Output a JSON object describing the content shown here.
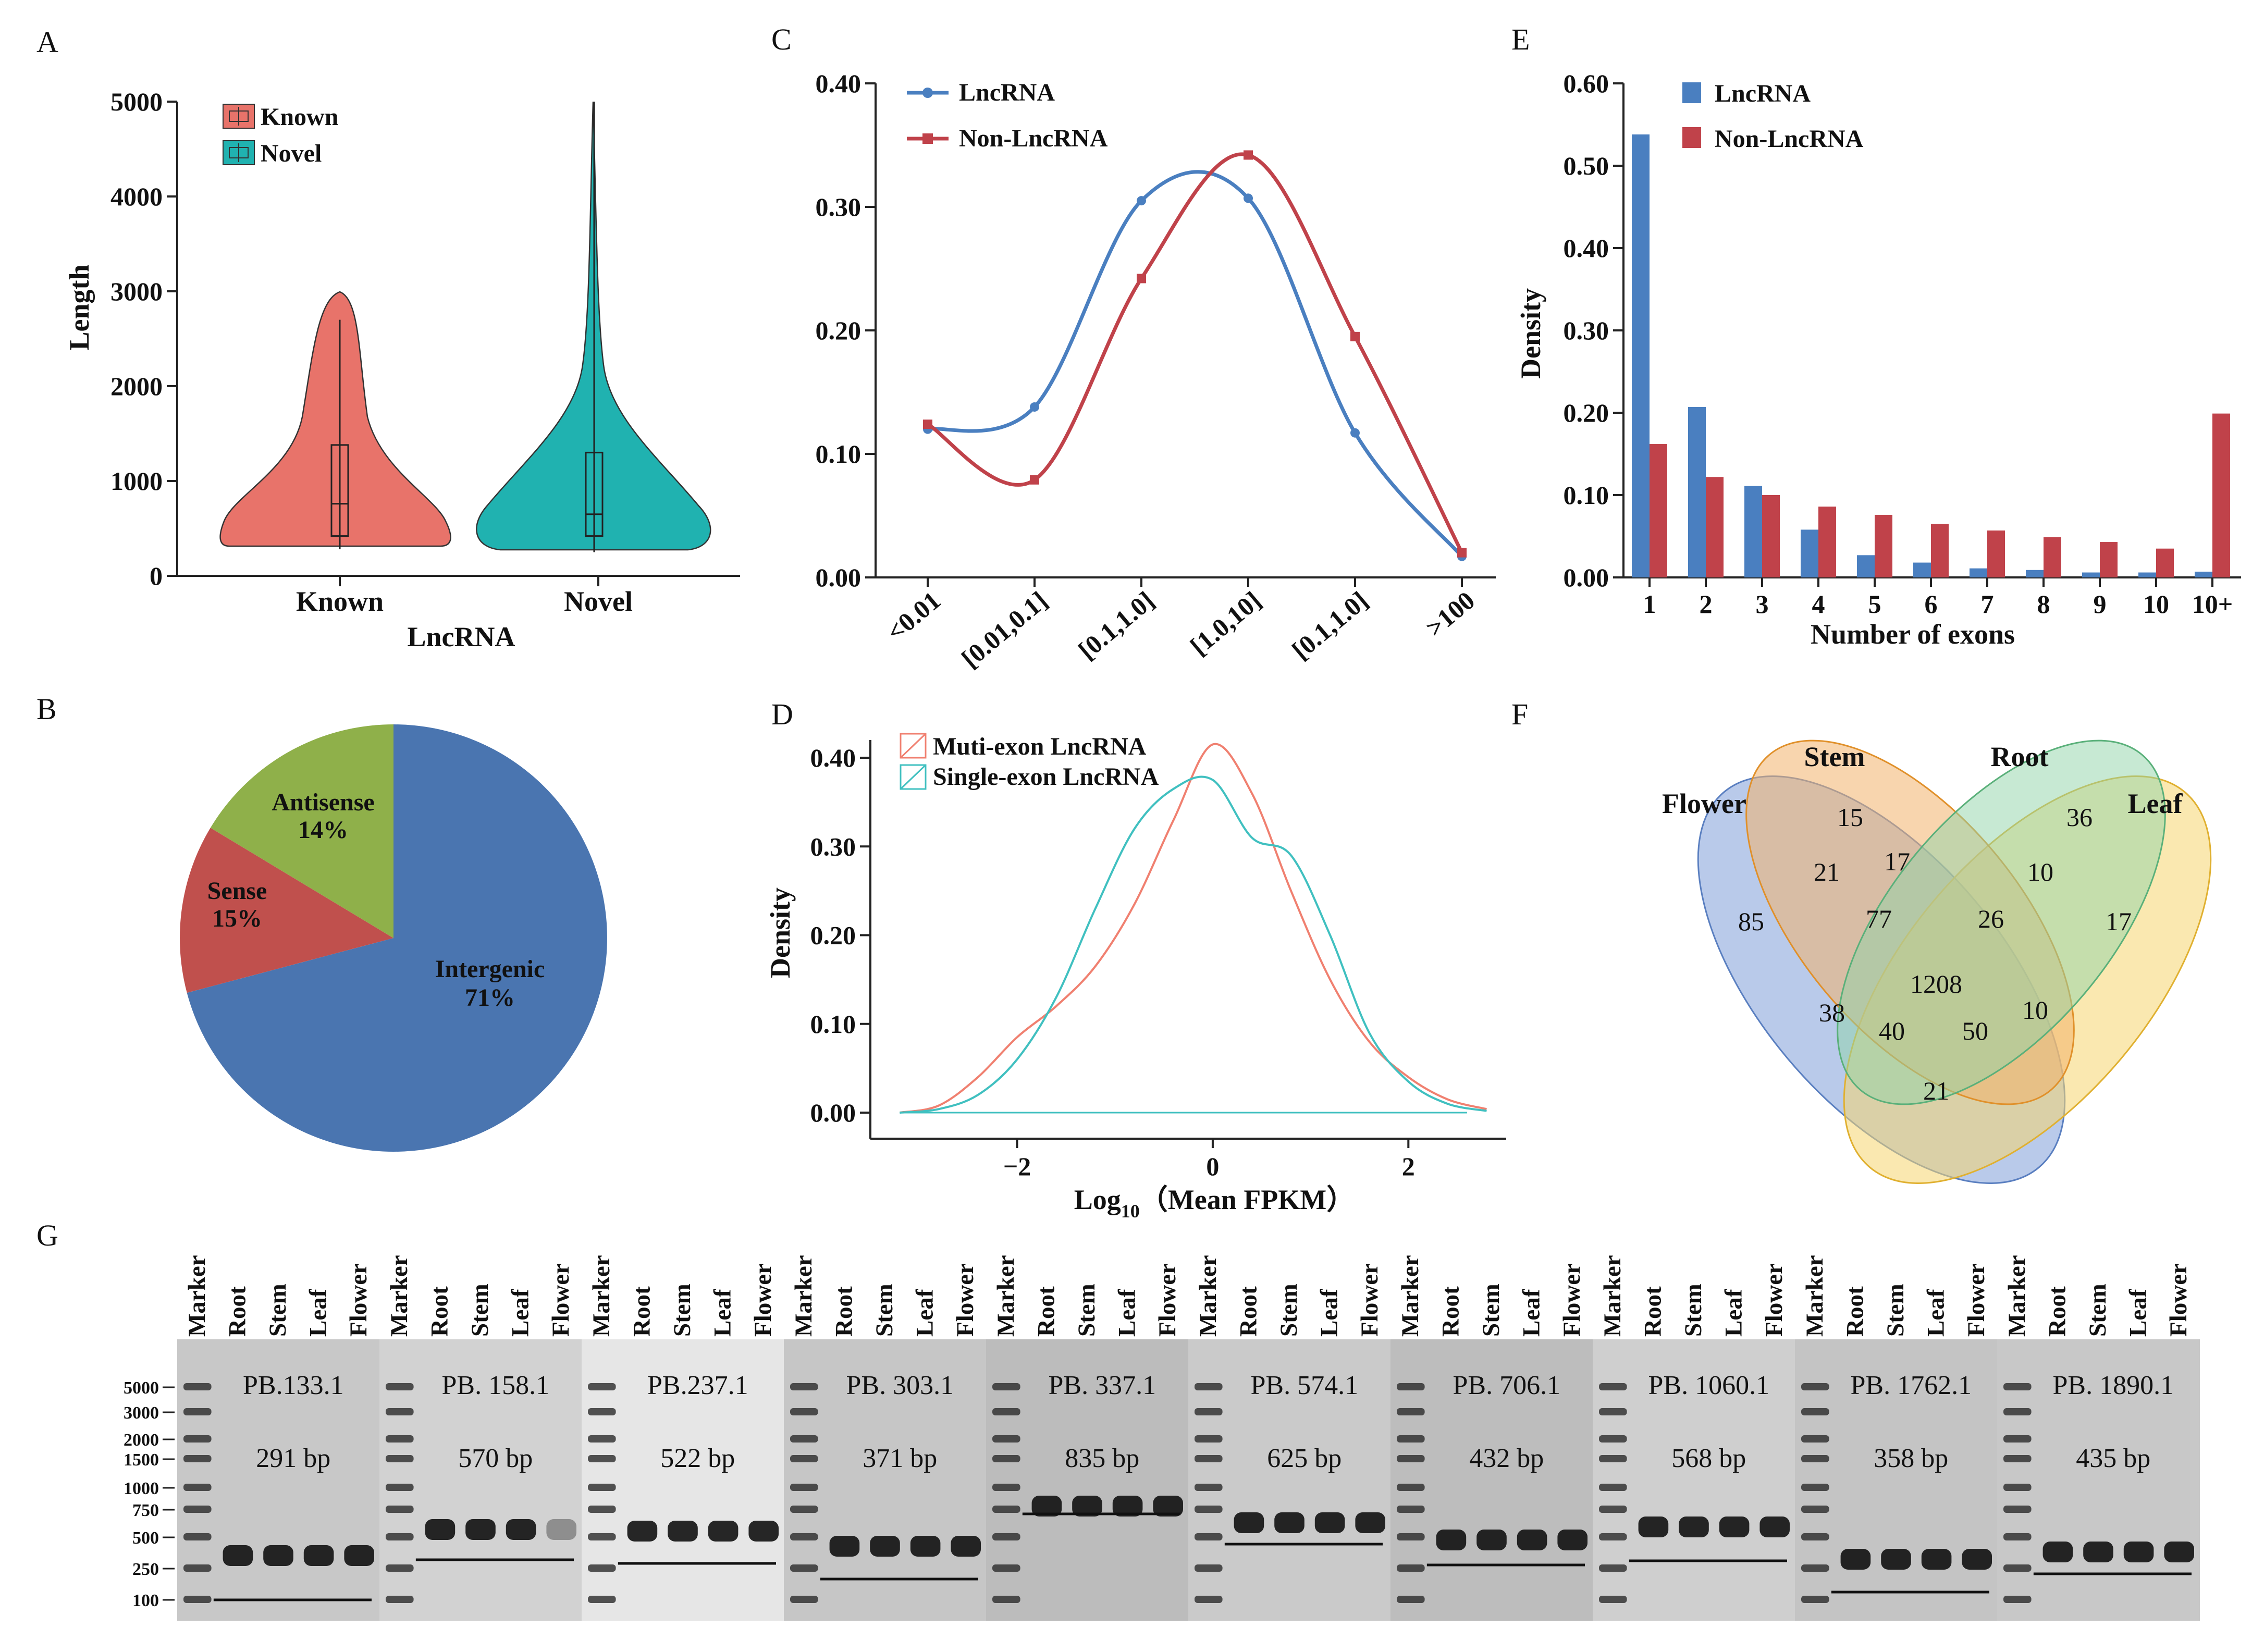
{
  "panel_labels": {
    "a": "A",
    "b": "B",
    "c": "C",
    "d": "D",
    "e": "E",
    "f": "F",
    "g": "G"
  },
  "colors": {
    "known": "#e8736a",
    "novel": "#20b2b0",
    "lnc_blue": "#4a7fc0",
    "non_red": "#c0424a",
    "intergenic": "#4a75b0",
    "sense": "#c0504d",
    "antisense": "#8fb04a",
    "flower": "#7f9fd8",
    "stem": "#f2b26b",
    "root": "#8fd4a8",
    "leaf": "#f6d66f",
    "muti": "#f08070",
    "single": "#40c0c0"
  },
  "chart_data": [
    {
      "id": "A",
      "type": "violin",
      "title": "",
      "xlabel": "LncRNA",
      "ylabel": "Length",
      "ylim": [
        0,
        5000
      ],
      "yticks": [
        0,
        1000,
        2000,
        3000,
        4000,
        5000
      ],
      "categories": [
        "Known",
        "Novel"
      ],
      "legend": [
        "Known",
        "Novel"
      ],
      "legend_position": "top-left",
      "boxes": [
        {
          "name": "Known",
          "min": 280,
          "q1": 420,
          "median": 760,
          "q3": 1380,
          "max": 2700
        },
        {
          "name": "Novel",
          "min": 250,
          "q1": 420,
          "median": 650,
          "q3": 1300,
          "max": 5000
        }
      ]
    },
    {
      "id": "B",
      "type": "pie",
      "slices": [
        {
          "label": "Intergenic",
          "pct_label": "71%",
          "value": 71
        },
        {
          "label": "Sense",
          "pct_label": "15%",
          "value": 15
        },
        {
          "label": "Antisense",
          "pct_label": "14%",
          "value": 14
        }
      ]
    },
    {
      "id": "C",
      "type": "line",
      "xlabel": "",
      "ylabel": "",
      "categories": [
        "<0.01",
        "[0.01,0.1]",
        "[0.1,1.0]",
        "[1.0,10]",
        "[0.1,1.0]",
        ">100"
      ],
      "ylim": [
        0,
        0.4
      ],
      "yticks": [
        "0.00",
        "0.10",
        "0.20",
        "0.30",
        "0.40"
      ],
      "series": [
        {
          "name": "LncRNA",
          "values": [
            0.12,
            0.138,
            0.305,
            0.307,
            0.117,
            0.017
          ]
        },
        {
          "name": "Non-LncRNA",
          "values": [
            0.124,
            0.079,
            0.242,
            0.342,
            0.195,
            0.02
          ]
        }
      ],
      "legend_position": "top-left"
    },
    {
      "id": "D",
      "type": "line",
      "xlabel": "Log",
      "xlabel_sub": "10",
      "xlabel_rest": "（Mean FPKM）",
      "ylabel": "Density",
      "xlim": [
        -3.5,
        3.0
      ],
      "ylim": [
        0,
        0.42
      ],
      "xticks": [
        "−2",
        "0",
        "2"
      ],
      "yticks": [
        "0.00",
        "0.10",
        "0.20",
        "0.30",
        "0.40"
      ],
      "series": [
        {
          "name": "Muti-exon LncRNA",
          "x": [
            -3.2,
            -2.8,
            -2.4,
            -2.0,
            -1.6,
            -1.2,
            -0.8,
            -0.4,
            0.0,
            0.4,
            0.8,
            1.2,
            1.6,
            2.0,
            2.4,
            2.8
          ],
          "y": [
            0.0,
            0.008,
            0.04,
            0.085,
            0.12,
            0.165,
            0.235,
            0.33,
            0.415,
            0.36,
            0.25,
            0.15,
            0.08,
            0.04,
            0.015,
            0.004
          ]
        },
        {
          "name": "Single-exon LncRNA",
          "x": [
            -3.2,
            -2.8,
            -2.4,
            -2.0,
            -1.6,
            -1.2,
            -0.8,
            -0.4,
            0.0,
            0.4,
            0.8,
            1.2,
            1.6,
            2.0,
            2.4,
            2.8
          ],
          "y": [
            0.0,
            0.004,
            0.02,
            0.06,
            0.13,
            0.23,
            0.32,
            0.365,
            0.375,
            0.31,
            0.29,
            0.2,
            0.09,
            0.035,
            0.01,
            0.002
          ]
        }
      ],
      "legend_position": "top-left"
    },
    {
      "id": "E",
      "type": "bar",
      "xlabel": "Number of exons",
      "ylabel": "Density",
      "categories": [
        "1",
        "2",
        "3",
        "4",
        "5",
        "6",
        "7",
        "8",
        "9",
        "10",
        "10+"
      ],
      "ylim": [
        0,
        0.6
      ],
      "yticks": [
        "0.00",
        "0.10",
        "0.20",
        "0.30",
        "0.40",
        "0.50",
        "0.60"
      ],
      "series": [
        {
          "name": "LncRNA",
          "values": [
            0.538,
            0.207,
            0.111,
            0.058,
            0.027,
            0.018,
            0.011,
            0.009,
            0.006,
            0.006,
            0.007
          ]
        },
        {
          "name": "Non-LncRNA",
          "values": [
            0.162,
            0.122,
            0.1,
            0.086,
            0.076,
            0.065,
            0.057,
            0.049,
            0.043,
            0.035,
            0.199
          ]
        }
      ],
      "legend_position": "top-left"
    },
    {
      "id": "F",
      "type": "venn",
      "sets": [
        "Flower",
        "Stem",
        "Root",
        "Leaf"
      ],
      "regions": [
        {
          "sets": "Stem",
          "value": "15"
        },
        {
          "sets": "Root",
          "value": "36"
        },
        {
          "sets": "Flower",
          "value": "85"
        },
        {
          "sets": "Leaf",
          "value": "17"
        },
        {
          "sets": "Flower+Stem",
          "value": "21"
        },
        {
          "sets": "Stem+Root",
          "value": "17"
        },
        {
          "sets": "Root+Leaf",
          "value": "10"
        },
        {
          "sets": "Flower+Stem+Root",
          "value": "77"
        },
        {
          "sets": "Stem+Root+Leaf",
          "value": "26"
        },
        {
          "sets": "All",
          "value": "1208"
        },
        {
          "sets": "Flower+Root",
          "value": "38"
        },
        {
          "sets": "Flower+Root+Leaf",
          "value": "40"
        },
        {
          "sets": "Flower+Stem+Leaf",
          "value": "50"
        },
        {
          "sets": "Stem+Leaf",
          "value": "10"
        },
        {
          "sets": "Flower+Leaf",
          "value": "21"
        }
      ]
    }
  ],
  "gel": {
    "lane_labels": [
      "Marker",
      "Root",
      "Stem",
      "Leaf",
      "Flower"
    ],
    "final_marker": "Marker",
    "marker_sizes": [
      "5000",
      "3000",
      "2000",
      "1500",
      "1000",
      "750",
      "500",
      "250",
      "100"
    ],
    "genes": [
      {
        "name": "PB.133.1",
        "size": "291 bp"
      },
      {
        "name": "PB. 158.1",
        "size": "570 bp"
      },
      {
        "name": "PB.237.1",
        "size": "522 bp"
      },
      {
        "name": "PB. 303.1",
        "size": "371 bp"
      },
      {
        "name": "PB. 337.1",
        "size": "835 bp"
      },
      {
        "name": "PB. 574.1",
        "size": "625 bp"
      },
      {
        "name": "PB. 706.1",
        "size": "432 bp"
      },
      {
        "name": "PB. 1060.1",
        "size": "568 bp"
      },
      {
        "name": "PB. 1762.1",
        "size": "358 bp"
      },
      {
        "name": "PB. 1890.1",
        "size": "435 bp"
      }
    ]
  }
}
